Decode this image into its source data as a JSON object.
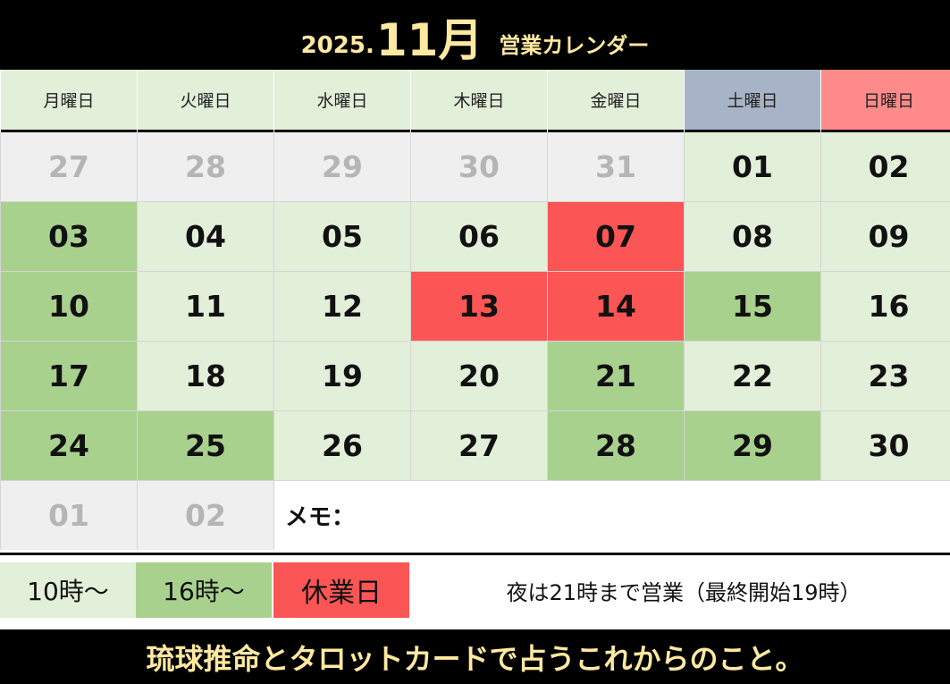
{
  "header": {
    "year": "2025.",
    "month": "11月",
    "subtitle": "営業カレンダー"
  },
  "weekdays": [
    "月曜日",
    "火曜日",
    "水曜日",
    "木曜日",
    "金曜日",
    "土曜日",
    "日曜日"
  ],
  "days": [
    [
      "27",
      "28",
      "29",
      "30",
      "31",
      "01",
      "02"
    ],
    [
      "03",
      "04",
      "05",
      "06",
      "07",
      "08",
      "09"
    ],
    [
      "10",
      "11",
      "12",
      "13",
      "14",
      "15",
      "16"
    ],
    [
      "17",
      "18",
      "19",
      "20",
      "21",
      "22",
      "23"
    ],
    [
      "24",
      "25",
      "26",
      "27",
      "28",
      "29",
      "30"
    ],
    [
      "01",
      "02"
    ]
  ],
  "memo_label": "メモ：",
  "legend": {
    "light_green": "10時～",
    "green": "16時～",
    "red": "休業日",
    "note": "夜は21時まで営業（最終開始19時）"
  },
  "footer": "琉球推命とタロットカードで占うこれからのこと。",
  "colors": {
    "light_green": "#e2efd9",
    "green": "#a9d18e",
    "red": "#fb5555",
    "grey": "#efefef",
    "saturday": "#a7b3c6",
    "sunday": "#ff8a8a",
    "accent_text": "#ffe9a0"
  }
}
